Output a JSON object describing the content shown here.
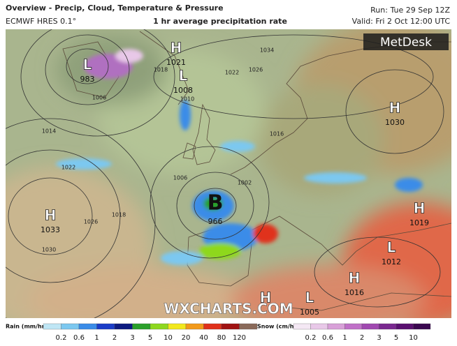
{
  "header": {
    "title": "Overview - Precip, Cloud, Temperature & Pressure",
    "model": "ECMWF HRES 0.1°",
    "subtitle": "1 hr average precipitation rate",
    "run": "Run: Tue 29 Sep 12Z",
    "valid": "Valid: Fri 2 Oct 12:00 UTC"
  },
  "logo": "MetDesk",
  "watermark": "WXCHARTS.COM",
  "pressure_centers": [
    {
      "symbol": "H",
      "value": 1021
    },
    {
      "symbol": "L",
      "value": 983
    },
    {
      "symbol": "L",
      "value": 1008
    },
    {
      "symbol": "H",
      "value": 1030
    },
    {
      "symbol": "H",
      "value": 1033
    },
    {
      "symbol": "B",
      "value": 966
    },
    {
      "symbol": "H",
      "value": 1019
    },
    {
      "symbol": "L",
      "value": 1012
    },
    {
      "symbol": "H",
      "value": 1016
    },
    {
      "symbol": "H"
    },
    {
      "symbol": "L",
      "value": 1005
    }
  ],
  "isobar_labels": [
    1034,
    1026,
    1022,
    1018,
    1014,
    1010,
    1006,
    1016,
    1022,
    1026,
    1030,
    1018,
    1006,
    1002
  ],
  "legend": {
    "rain": {
      "label": "Rain (mm/hr)",
      "ticks": [
        0.2,
        0.6,
        1,
        2,
        3,
        5,
        10,
        20,
        40,
        80,
        120
      ],
      "colors": [
        "#bfe6f5",
        "#7cc8f0",
        "#3a8ce8",
        "#1a3cc8",
        "#0c1a80",
        "#2aa02a",
        "#8ed81e",
        "#f2e81c",
        "#f29a1a",
        "#e0301a",
        "#a01212",
        "#8a6a5a"
      ]
    },
    "snow": {
      "label": "Snow (cm/hr)",
      "ticks": [
        0.2,
        0.6,
        1,
        2,
        3,
        5,
        10
      ],
      "colors": [
        "#f4e8f4",
        "#e8c8e8",
        "#d8a0d8",
        "#c070c8",
        "#a048b0",
        "#7a2890",
        "#5a1070",
        "#3a0850"
      ]
    }
  }
}
